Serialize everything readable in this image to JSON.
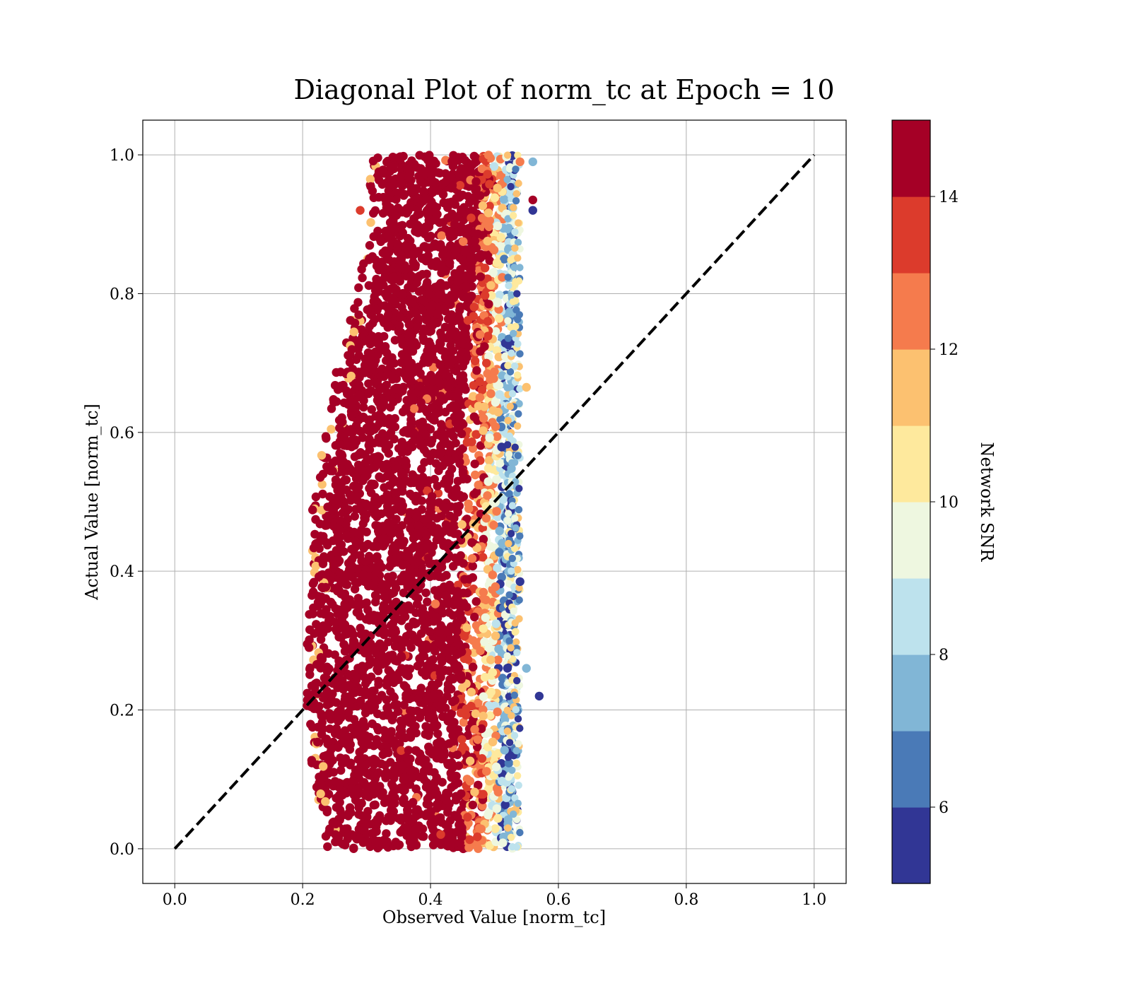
{
  "chart_data": {
    "type": "scatter",
    "title": "Diagonal Plot of norm_tc at Epoch = 10",
    "xlabel": "Observed Value [norm_tc]",
    "ylabel": "Actual Value [norm_tc]",
    "xlim": [
      -0.05,
      1.05
    ],
    "ylim": [
      -0.05,
      1.05
    ],
    "xticks": [
      "0.0",
      "0.2",
      "0.4",
      "0.6",
      "0.8",
      "1.0"
    ],
    "yticks": [
      "0.0",
      "0.2",
      "0.4",
      "0.6",
      "0.8",
      "1.0"
    ],
    "grid": true,
    "reference_line": {
      "x": [
        0.0,
        1.0
      ],
      "y": [
        0.0,
        1.0
      ],
      "style": "dashed",
      "color": "#000000"
    },
    "colorbar": {
      "label": "Network SNR",
      "range": [
        5,
        15
      ],
      "ticks": [
        "6",
        "8",
        "10",
        "12",
        "14"
      ],
      "colors": [
        "#313695",
        "#4a7ab7",
        "#81b6d6",
        "#bde2ed",
        "#eef7e0",
        "#fee99d",
        "#fcc170",
        "#f57b4d",
        "#dc3b2c",
        "#a50026"
      ]
    },
    "point_cloud": {
      "rows": [
        {
          "y": 0.0,
          "x_min": 0.26,
          "x_mid": 0.4,
          "x_max": 0.53
        },
        {
          "y": 0.1,
          "x_min": 0.24,
          "x_mid": 0.38,
          "x_max": 0.53
        },
        {
          "y": 0.2,
          "x_min": 0.23,
          "x_mid": 0.37,
          "x_max": 0.53
        },
        {
          "y": 0.3,
          "x_min": 0.23,
          "x_mid": 0.37,
          "x_max": 0.53
        },
        {
          "y": 0.4,
          "x_min": 0.24,
          "x_mid": 0.38,
          "x_max": 0.53
        },
        {
          "y": 0.5,
          "x_min": 0.24,
          "x_mid": 0.39,
          "x_max": 0.53
        },
        {
          "y": 0.6,
          "x_min": 0.26,
          "x_mid": 0.4,
          "x_max": 0.53
        },
        {
          "y": 0.7,
          "x_min": 0.28,
          "x_mid": 0.41,
          "x_max": 0.53
        },
        {
          "y": 0.8,
          "x_min": 0.31,
          "x_mid": 0.42,
          "x_max": 0.53
        },
        {
          "y": 0.9,
          "x_min": 0.33,
          "x_mid": 0.43,
          "x_max": 0.53
        },
        {
          "y": 1.0,
          "x_min": 0.33,
          "x_mid": 0.43,
          "x_max": 0.53
        }
      ],
      "outliers": [
        {
          "x": 0.56,
          "y": 0.99,
          "snr": 7
        },
        {
          "x": 0.54,
          "y": 0.99,
          "snr": 12
        },
        {
          "x": 0.56,
          "y": 0.935,
          "snr": 14.5
        },
        {
          "x": 0.56,
          "y": 0.92,
          "snr": 5.5
        },
        {
          "x": 0.55,
          "y": 0.665,
          "snr": 11
        },
        {
          "x": 0.55,
          "y": 0.26,
          "snr": 7.5
        },
        {
          "x": 0.57,
          "y": 0.22,
          "snr": 5.5
        },
        {
          "x": 0.54,
          "y": 0.385,
          "snr": 5.5
        },
        {
          "x": 0.21,
          "y": 0.29,
          "snr": 14.5
        },
        {
          "x": 0.29,
          "y": 0.92,
          "snr": 13.5
        }
      ]
    }
  }
}
